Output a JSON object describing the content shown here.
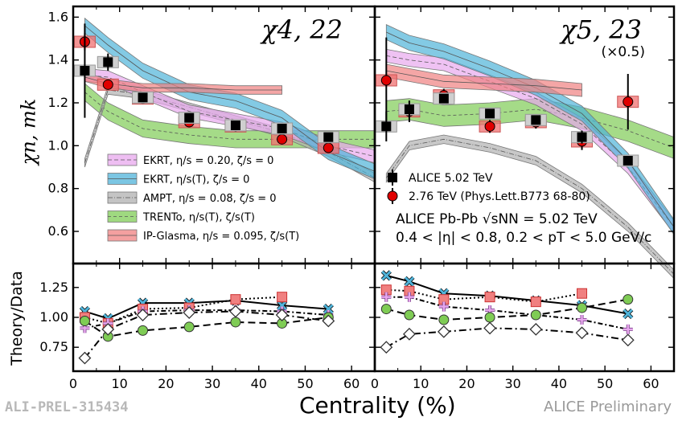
{
  "page": {
    "footer_id": "ALI-PREL-315434",
    "footer_status": "ALICE Preliminary",
    "xlabel": "Centrality (%)",
    "ylabel_top": "χn, mk",
    "ylabel_bottom": "Theory/Data"
  },
  "colors": {
    "EKRT_eta020": "#e8a8ee",
    "EKRT_etaT": "#4fb3d9",
    "AMPT": "#b0b0b0",
    "TRENTo": "#7fcc55",
    "IPGlasma": "#f08080",
    "data502": "#000000",
    "data276": "#e00000"
  },
  "chart_data": [
    {
      "type": "line",
      "panel": "chi_4_22",
      "title": "χ4, 22",
      "xlim": [
        0,
        65
      ],
      "ylim": [
        0.45,
        1.65
      ],
      "yticks": [
        0.6,
        0.8,
        1.0,
        1.2,
        1.4,
        1.6
      ],
      "xticks": [
        0,
        10,
        20,
        30,
        40,
        50,
        60
      ],
      "legend_placement": "lower-left",
      "legend": [
        "EKRT, η/s = 0.20, ζ/s = 0",
        "EKRT, η/s(T), ζ/s = 0",
        "AMPT, η/s = 0.08, ζ/s = 0",
        "TRENTo, η/s(T), ζ/s(T)",
        "IP-Glasma, η/s = 0.095, ζ/s(T)"
      ],
      "data_alice502": {
        "x": [
          2.5,
          7.5,
          15,
          25,
          35,
          45,
          55
        ],
        "y": [
          1.35,
          1.39,
          1.225,
          1.13,
          1.095,
          1.08,
          1.04
        ],
        "err": [
          0.22,
          0.04,
          0.02,
          0.02,
          0.015,
          0.02,
          0.02
        ]
      },
      "data_276": {
        "x": [
          2.5,
          7.5,
          15,
          25,
          35,
          45,
          55
        ],
        "y": [
          1.485,
          1.285,
          1.22,
          1.11,
          1.09,
          1.03,
          0.99
        ],
        "err": [
          0.04,
          0.02,
          0.02,
          0.015,
          0.015,
          0.015,
          0.015
        ]
      },
      "bands": {
        "EKRT_eta020": {
          "x": [
            2.5,
            7.5,
            15,
            25,
            35,
            45,
            55,
            65
          ],
          "y": [
            1.33,
            1.32,
            1.25,
            1.16,
            1.12,
            1.08,
            1.0,
            0.95
          ],
          "hw": 0.03
        },
        "EKRT_etaT": {
          "x": [
            2.5,
            7.5,
            15,
            25,
            35,
            45,
            55,
            65
          ],
          "y": [
            1.56,
            1.47,
            1.35,
            1.25,
            1.21,
            1.13,
            0.97,
            0.88
          ],
          "hw": 0.035
        },
        "AMPT": {
          "x": [
            2.5,
            7.5,
            15,
            25,
            35,
            45,
            55,
            65
          ],
          "y": [
            0.92,
            1.26,
            1.24,
            1.18,
            1.12,
            1.06,
            0.97,
            0.85
          ],
          "hw": 0.02
        },
        "TRENTo": {
          "x": [
            2.5,
            7.5,
            15,
            25,
            35,
            45,
            55,
            65
          ],
          "y": [
            1.25,
            1.16,
            1.08,
            1.05,
            1.03,
            1.03,
            1.03,
            1.03
          ],
          "hw": 0.04
        },
        "IPGlasma": {
          "x": [
            2.5,
            7.5,
            15,
            25,
            35,
            45
          ],
          "y": [
            1.32,
            1.29,
            1.27,
            1.27,
            1.26,
            1.26
          ],
          "hw": 0.02
        }
      }
    },
    {
      "type": "line",
      "panel": "chi_5_23",
      "title": "χ5, 23",
      "subtitle": "(×0.5)",
      "xlim": [
        0,
        65
      ],
      "ylim": [
        0.45,
        1.65
      ],
      "legend": [
        "ALICE 5.02 TeV",
        "2.76 TeV (Phys.Lett.B773 68-80)"
      ],
      "annotation_line1": "ALICE Pb-Pb √sNN = 5.02 TeV",
      "annotation_line2": "0.4 < |η| < 0.8, 0.2 < pT < 5.0 GeV/c",
      "data_alice502": {
        "x": [
          2.5,
          7.5,
          15,
          25,
          35,
          45,
          55
        ],
        "y": [
          1.09,
          1.17,
          1.22,
          1.15,
          1.12,
          1.04,
          0.93
        ],
        "err": [
          0.07,
          0.04,
          0.02,
          0.02,
          0.02,
          0.03,
          0.01
        ]
      },
      "data_276": {
        "x": [
          2.5,
          7.5,
          15,
          25,
          35,
          45,
          55
        ],
        "y": [
          1.305,
          1.16,
          1.235,
          1.09,
          1.11,
          1.02,
          1.205
        ],
        "err": [
          0.2,
          0.05,
          0.03,
          0.03,
          0.03,
          0.04,
          0.13
        ]
      },
      "bands": {
        "EKRT_eta020": {
          "x": [
            2.5,
            7.5,
            15,
            25,
            35,
            45,
            55,
            65
          ],
          "y": [
            1.42,
            1.4,
            1.38,
            1.3,
            1.22,
            1.1,
            0.9,
            0.62
          ],
          "hw": 0.03
        },
        "EKRT_etaT": {
          "x": [
            2.5,
            7.5,
            15,
            25,
            35,
            45,
            55,
            65
          ],
          "y": [
            1.53,
            1.48,
            1.44,
            1.36,
            1.27,
            1.15,
            0.93,
            0.62
          ],
          "hw": 0.035
        },
        "AMPT": {
          "x": [
            2.5,
            7.5,
            15,
            25,
            35,
            45,
            55,
            65
          ],
          "y": [
            0.85,
            1.0,
            1.03,
            0.99,
            0.93,
            0.8,
            0.62,
            0.4
          ],
          "hw": 0.02
        },
        "TRENTo": {
          "x": [
            2.5,
            7.5,
            15,
            25,
            35,
            45,
            55,
            65
          ],
          "y": [
            1.16,
            1.17,
            1.14,
            1.15,
            1.17,
            1.13,
            1.07,
            0.99
          ],
          "hw": 0.05
        },
        "IPGlasma": {
          "x": [
            2.5,
            7.5,
            15,
            25,
            35,
            45
          ],
          "y": [
            1.35,
            1.33,
            1.3,
            1.29,
            1.28,
            1.26
          ],
          "hw": 0.03
        }
      }
    },
    {
      "type": "line",
      "panel": "ratio_chi_4_22",
      "ylabel": "Theory/Data",
      "xlim": [
        0,
        65
      ],
      "ylim": [
        0.55,
        1.45
      ],
      "yticks": [
        0.75,
        1.0,
        1.25
      ],
      "xticks": [
        0,
        10,
        20,
        30,
        40,
        50,
        60
      ],
      "series": [
        {
          "key": "EKRT_etaT",
          "x": [
            2.5,
            7.5,
            15,
            25,
            35,
            45,
            55
          ],
          "y": [
            1.05,
            0.99,
            1.12,
            1.12,
            1.14,
            1.1,
            1.07
          ]
        },
        {
          "key": "IPGlasma",
          "x": [
            2.5,
            7.5,
            15,
            25,
            35,
            45
          ],
          "y": [
            1.0,
            0.95,
            1.07,
            1.08,
            1.15,
            1.17
          ]
        },
        {
          "key": "EKRT_eta020",
          "x": [
            2.5,
            7.5,
            15,
            25,
            35,
            45,
            55
          ],
          "y": [
            0.91,
            0.95,
            1.05,
            1.06,
            1.06,
            1.05,
            1.02
          ]
        },
        {
          "key": "TRENTo",
          "x": [
            2.5,
            7.5,
            15,
            25,
            35,
            45,
            55
          ],
          "y": [
            0.97,
            0.84,
            0.89,
            0.92,
            0.96,
            0.95,
            1.0
          ]
        },
        {
          "key": "AMPT",
          "x": [
            2.5,
            7.5,
            15,
            25,
            35,
            45,
            55
          ],
          "y": [
            0.66,
            0.9,
            1.02,
            1.04,
            1.05,
            1.02,
            0.97
          ]
        }
      ]
    },
    {
      "type": "line",
      "panel": "ratio_chi_5_23",
      "xlim": [
        0,
        65
      ],
      "ylim": [
        0.55,
        1.45
      ],
      "series": [
        {
          "key": "EKRT_etaT",
          "x": [
            2.5,
            7.5,
            15,
            25,
            35,
            45,
            55
          ],
          "y": [
            1.35,
            1.3,
            1.2,
            1.18,
            1.14,
            1.1,
            1.03
          ]
        },
        {
          "key": "IPGlasma",
          "x": [
            2.5,
            7.5,
            15,
            25,
            35,
            45
          ],
          "y": [
            1.23,
            1.22,
            1.15,
            1.17,
            1.13,
            1.2
          ]
        },
        {
          "key": "EKRT_eta020",
          "x": [
            2.5,
            7.5,
            15,
            25,
            35,
            45,
            55
          ],
          "y": [
            1.17,
            1.17,
            1.09,
            1.06,
            1.02,
            0.98,
            0.9
          ]
        },
        {
          "key": "TRENTo",
          "x": [
            2.5,
            7.5,
            15,
            25,
            35,
            45,
            55
          ],
          "y": [
            1.07,
            1.02,
            0.98,
            1.0,
            1.02,
            1.08,
            1.15
          ]
        },
        {
          "key": "AMPT",
          "x": [
            2.5,
            7.5,
            15,
            25,
            35,
            45,
            55
          ],
          "y": [
            0.75,
            0.86,
            0.88,
            0.91,
            0.9,
            0.87,
            0.81
          ]
        }
      ]
    }
  ]
}
